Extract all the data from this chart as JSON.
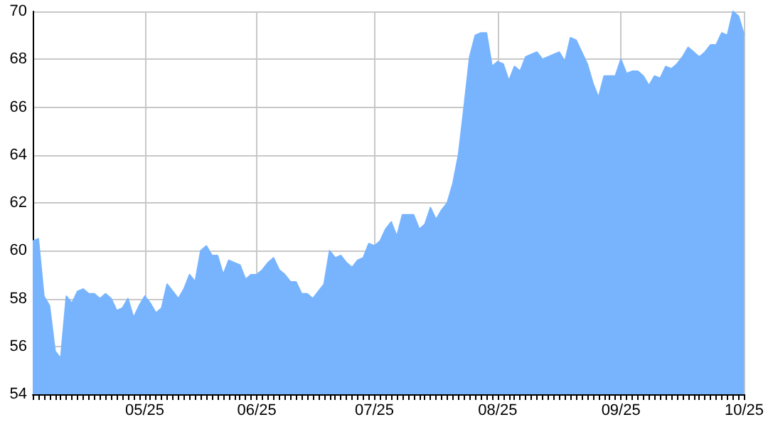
{
  "chart_data": {
    "type": "area",
    "categories": [
      null,
      null,
      null,
      null,
      null,
      null,
      null,
      null,
      null,
      null,
      null,
      null,
      null,
      null,
      null,
      null,
      null,
      null,
      null,
      null,
      "05/25",
      null,
      null,
      null,
      null,
      null,
      null,
      null,
      null,
      null,
      null,
      null,
      null,
      null,
      null,
      null,
      null,
      null,
      null,
      null,
      "06/25",
      null,
      null,
      null,
      null,
      null,
      null,
      null,
      null,
      null,
      null,
      null,
      null,
      null,
      null,
      null,
      null,
      null,
      null,
      null,
      null,
      "07/25",
      null,
      null,
      null,
      null,
      null,
      null,
      null,
      null,
      null,
      null,
      null,
      null,
      null,
      null,
      null,
      null,
      null,
      null,
      null,
      null,
      null,
      "08/25",
      null,
      null,
      null,
      null,
      null,
      null,
      null,
      null,
      null,
      null,
      null,
      null,
      null,
      null,
      null,
      null,
      null,
      null,
      null,
      null,
      null,
      "09/25",
      null,
      null,
      null,
      null,
      null,
      null,
      null,
      null,
      null,
      null,
      null,
      null,
      null,
      null,
      null,
      null,
      null,
      null,
      null,
      null,
      null,
      "10/25"
    ],
    "series": [
      {
        "color": "#78b4fe",
        "values": [
          60.4,
          60.5,
          58.1,
          57.7,
          55.8,
          55.5,
          58.1,
          57.8,
          58.3,
          58.4,
          58.2,
          58.2,
          58.0,
          58.2,
          58.0,
          57.5,
          57.6,
          58.0,
          57.2,
          57.7,
          58.1,
          57.8,
          57.4,
          57.6,
          58.6,
          58.3,
          58.0,
          58.4,
          59.0,
          58.7,
          60.0,
          60.2,
          59.8,
          59.8,
          59.0,
          59.6,
          59.5,
          59.4,
          58.8,
          59.0,
          59.0,
          59.2,
          59.5,
          59.7,
          59.2,
          59.0,
          58.7,
          58.7,
          58.2,
          58.2,
          58.0,
          58.3,
          58.6,
          60.0,
          59.7,
          59.8,
          59.5,
          59.3,
          59.6,
          59.7,
          60.3,
          60.2,
          60.4,
          60.9,
          61.2,
          60.6,
          61.5,
          61.5,
          61.5,
          60.9,
          61.1,
          61.8,
          61.3,
          61.7,
          62.0,
          62.8,
          64.0,
          66.0,
          68.1,
          69.0,
          69.1,
          69.1,
          67.7,
          67.9,
          67.8,
          67.1,
          67.7,
          67.5,
          68.1,
          68.2,
          68.3,
          68.0,
          68.1,
          68.2,
          68.3,
          67.9,
          68.9,
          68.8,
          68.3,
          67.8,
          67.0,
          66.4,
          67.3,
          67.3,
          67.3,
          68.0,
          67.4,
          67.5,
          67.5,
          67.3,
          66.9,
          67.3,
          67.2,
          67.7,
          67.6,
          67.8,
          68.1,
          68.5,
          68.3,
          68.1,
          68.3,
          68.6,
          68.6,
          69.1,
          69.0,
          70.0,
          69.8,
          69.0
        ]
      }
    ],
    "ylim": [
      54,
      70
    ],
    "yticks": [
      54,
      56,
      58,
      60,
      62,
      64,
      66,
      68,
      70
    ],
    "grid": true,
    "marker": "none"
  }
}
